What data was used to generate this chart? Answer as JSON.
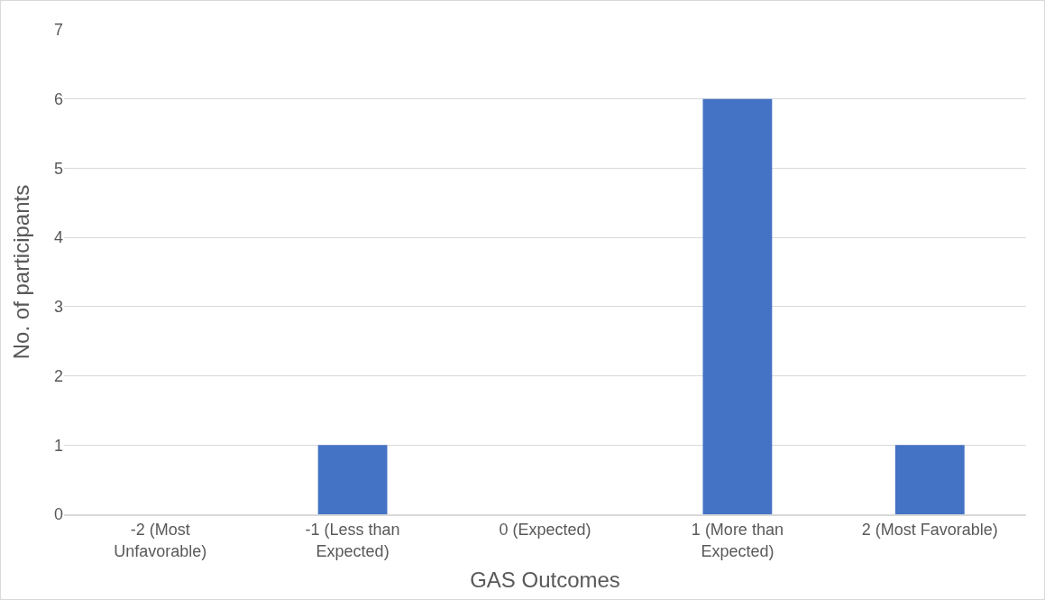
{
  "chart_data": {
    "type": "bar",
    "xlabel": "GAS Outcomes",
    "ylabel": "No. of participants",
    "categories": [
      "-2 (Most Unfavorable)",
      "-1 (Less than Expected)",
      "0 (Expected)",
      "1 (More than Expected)",
      "2 (Most Favorable)"
    ],
    "values": [
      0,
      1,
      0,
      6,
      1
    ],
    "color": "#4472c4",
    "ylim": [
      0,
      7
    ],
    "yticks": [
      0,
      1,
      2,
      3,
      4,
      5,
      6,
      7
    ],
    "grid": "y"
  }
}
